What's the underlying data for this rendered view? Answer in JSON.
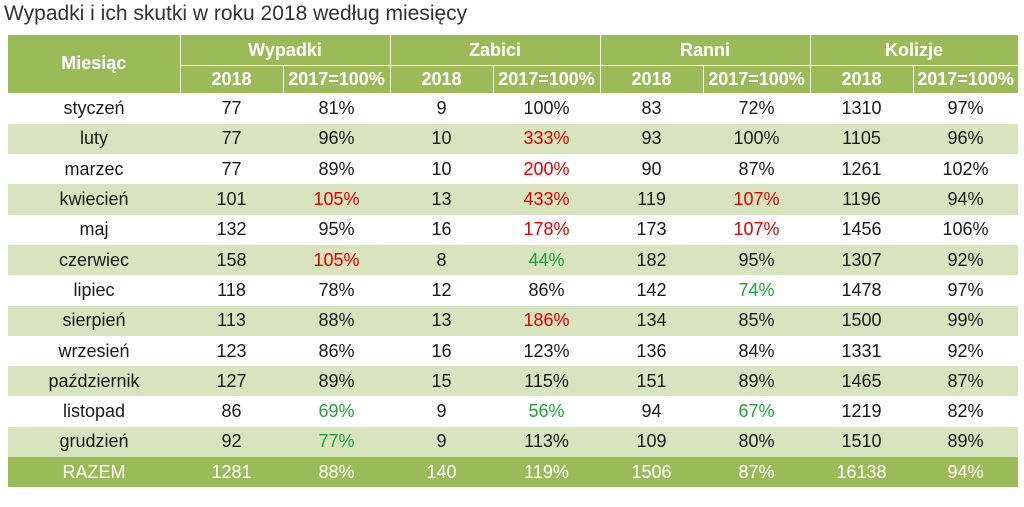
{
  "title": "Wypadki i ich skutki w roku 2018 według miesięcy",
  "colors": {
    "header_bg": "#9bbb59",
    "row_shade": "#d7e4bd",
    "up": "#e00000",
    "down": "#22a13a"
  },
  "header": {
    "month": "Miesiąc",
    "groups": [
      "Wypadki",
      "Zabici",
      "Ranni",
      "Kolizje"
    ],
    "sub_year": "2018",
    "sub_index": "2017=100%"
  },
  "rows": [
    {
      "month": "styczeń",
      "values": [
        "77",
        "81%",
        "9",
        "100%",
        "83",
        "72%",
        "1310",
        "97%"
      ]
    },
    {
      "month": "luty",
      "values": [
        "77",
        "96%",
        "10",
        "333%",
        "93",
        "100%",
        "1105",
        "96%"
      ]
    },
    {
      "month": "marzec",
      "values": [
        "77",
        "89%",
        "10",
        "200%",
        "90",
        "87%",
        "1261",
        "102%"
      ]
    },
    {
      "month": "kwiecień",
      "values": [
        "101",
        "105%",
        "13",
        "433%",
        "119",
        "107%",
        "1196",
        "94%"
      ]
    },
    {
      "month": "maj",
      "values": [
        "132",
        "95%",
        "16",
        "178%",
        "173",
        "107%",
        "1456",
        "106%"
      ]
    },
    {
      "month": "czerwiec",
      "values": [
        "158",
        "105%",
        "8",
        "44%",
        "182",
        "95%",
        "1307",
        "92%"
      ]
    },
    {
      "month": "lipiec",
      "values": [
        "118",
        "78%",
        "12",
        "86%",
        "142",
        "74%",
        "1478",
        "97%"
      ]
    },
    {
      "month": "sierpień",
      "values": [
        "113",
        "88%",
        "13",
        "186%",
        "134",
        "85%",
        "1500",
        "99%"
      ]
    },
    {
      "month": "wrzesień",
      "values": [
        "123",
        "86%",
        "16",
        "123%",
        "136",
        "84%",
        "1331",
        "92%"
      ]
    },
    {
      "month": "październik",
      "values": [
        "127",
        "89%",
        "15",
        "115%",
        "151",
        "89%",
        "1465",
        "87%"
      ]
    },
    {
      "month": "listopad",
      "values": [
        "86",
        "69%",
        "9",
        "56%",
        "94",
        "67%",
        "1219",
        "82%"
      ]
    },
    {
      "month": "grudzień",
      "values": [
        "92",
        "77%",
        "9",
        "113%",
        "109",
        "80%",
        "1510",
        "89%"
      ]
    }
  ],
  "cell_colors": {
    "1": {
      "3": "red"
    },
    "2": {
      "3": "red"
    },
    "3": {
      "1": "red",
      "3": "red",
      "5": "red"
    },
    "4": {
      "3": "red",
      "5": "red"
    },
    "5": {
      "1": "red",
      "3": "green"
    },
    "6": {
      "5": "green"
    },
    "7": {
      "3": "red"
    },
    "10": {
      "1": "green",
      "3": "green",
      "5": "green"
    },
    "11": {
      "1": "green"
    }
  },
  "total": {
    "label": "RAZEM",
    "values": [
      "1281",
      "88%",
      "140",
      "119%",
      "1506",
      "87%",
      "16138",
      "94%"
    ]
  }
}
